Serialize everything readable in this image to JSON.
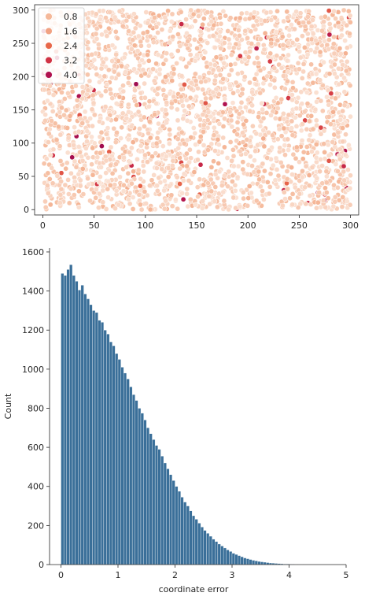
{
  "chart_data": [
    {
      "type": "scatter",
      "title": "",
      "xlabel": "",
      "ylabel": "",
      "xlim": [
        -8,
        308
      ],
      "ylim": [
        -8,
        308
      ],
      "x_ticks": [
        "0",
        "50",
        "100",
        "150",
        "200",
        "250",
        "300"
      ],
      "y_ticks": [
        "0",
        "50",
        "100",
        "150",
        "200",
        "250",
        "300"
      ],
      "x_tick_values": [
        0,
        50,
        100,
        150,
        200,
        250,
        300
      ],
      "y_tick_values": [
        0,
        50,
        100,
        150,
        200,
        250,
        300
      ],
      "hue_range": [
        0,
        4.3
      ],
      "legend": {
        "placement": "upper-left",
        "entries": [
          {
            "label": "0.8",
            "value": 0.8,
            "color": "#f5b899"
          },
          {
            "label": "1.6",
            "value": 1.6,
            "color": "#f1a283"
          },
          {
            "label": "2.4",
            "value": 2.4,
            "color": "#e86749"
          },
          {
            "label": "3.2",
            "value": 3.2,
            "color": "#d13344"
          },
          {
            "label": "4.0",
            "value": 4.0,
            "color": "#b0124f"
          }
        ]
      },
      "points_description": "dense uniform grid of points over x 0-300, y 0-300, hue mostly 0.3-1.8, rare values up to 4",
      "grid": false
    },
    {
      "type": "bar",
      "title": "",
      "xlabel": "coordinate error",
      "ylabel": "Count",
      "xlim": [
        -0.2,
        5.0
      ],
      "ylim": [
        0,
        1620
      ],
      "x_ticks": [
        "0",
        "1",
        "2",
        "3",
        "4",
        "5"
      ],
      "y_ticks": [
        "0",
        "200",
        "400",
        "600",
        "800",
        "1000",
        "1200",
        "1400",
        "1600"
      ],
      "x_tick_values": [
        0,
        1,
        2,
        3,
        4,
        5
      ],
      "y_tick_values": [
        0,
        200,
        400,
        600,
        800,
        1000,
        1200,
        1400,
        1600
      ],
      "bin_start": 0,
      "bin_width": 0.05,
      "bar_color": "#3a6f99",
      "values": [
        1490,
        1480,
        1510,
        1535,
        1480,
        1450,
        1405,
        1430,
        1385,
        1360,
        1330,
        1300,
        1290,
        1250,
        1240,
        1200,
        1180,
        1140,
        1120,
        1080,
        1050,
        1010,
        980,
        950,
        910,
        870,
        840,
        800,
        775,
        740,
        700,
        670,
        640,
        610,
        590,
        555,
        520,
        490,
        460,
        430,
        400,
        375,
        345,
        320,
        300,
        275,
        250,
        232,
        212,
        192,
        175,
        160,
        145,
        130,
        118,
        105,
        95,
        85,
        75,
        67,
        58,
        52,
        46,
        40,
        34,
        30,
        26,
        22,
        19,
        16,
        14,
        12,
        10,
        8,
        7,
        6,
        5,
        4,
        3,
        3,
        2,
        2,
        1,
        1,
        1
      ],
      "grid": false
    }
  ]
}
